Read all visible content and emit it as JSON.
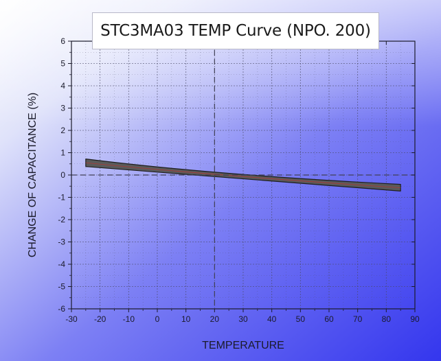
{
  "chart_data": {
    "type": "area",
    "title": "STC3MA03 TEMP Curve (NPO. 200)",
    "xlabel": "TEMPERATURE",
    "ylabel": "CHANGE OF CAPACITANCE (%)",
    "xlim": [
      -30,
      90
    ],
    "ylim": [
      -6,
      6
    ],
    "xticks": [
      "-30",
      "-20",
      "-10",
      "0",
      "10",
      "20",
      "30",
      "40",
      "50",
      "60",
      "70",
      "80",
      "90"
    ],
    "yticks": [
      "6",
      "5",
      "4",
      "3",
      "2",
      "1",
      "0",
      "-1",
      "-2",
      "-3",
      "-4",
      "-5",
      "-6"
    ],
    "grid": true,
    "reference_lines": {
      "x": 20,
      "y": 0
    },
    "series": [
      {
        "x": [
          -25,
          20,
          85
        ],
        "upper": [
          0.72,
          0.0,
          -0.42
        ],
        "lower": [
          0.38,
          -0.05,
          -0.72
        ]
      }
    ],
    "colors": {
      "band_fill": "#5a5a5a",
      "band_edge": "#1e1e1e",
      "band_inner": "#c03030",
      "reference_line": "#404055",
      "grid": "#4a4a66",
      "background_light": "#eef0fb",
      "background_dark": "#3b3ff0"
    }
  }
}
